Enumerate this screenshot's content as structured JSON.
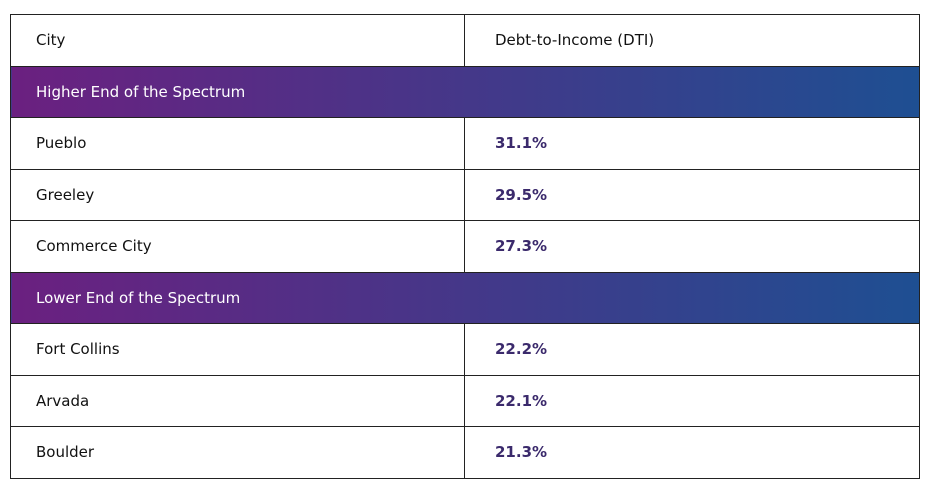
{
  "table": {
    "header": [
      "City",
      "Debt-to-Income (DTI)"
    ],
    "sections": [
      {
        "title": "Higher End of the Spectrum",
        "rows": [
          [
            "Pueblo",
            "31.1%"
          ],
          [
            "Greeley",
            "29.5%"
          ],
          [
            "Commerce City",
            "27.3%"
          ]
        ]
      },
      {
        "title": "Lower End of the Spectrum",
        "rows": [
          [
            "Fort Collins",
            "22.2%"
          ],
          [
            "Arvada",
            "22.1%"
          ],
          [
            "Boulder",
            "21.3%"
          ]
        ]
      }
    ]
  }
}
